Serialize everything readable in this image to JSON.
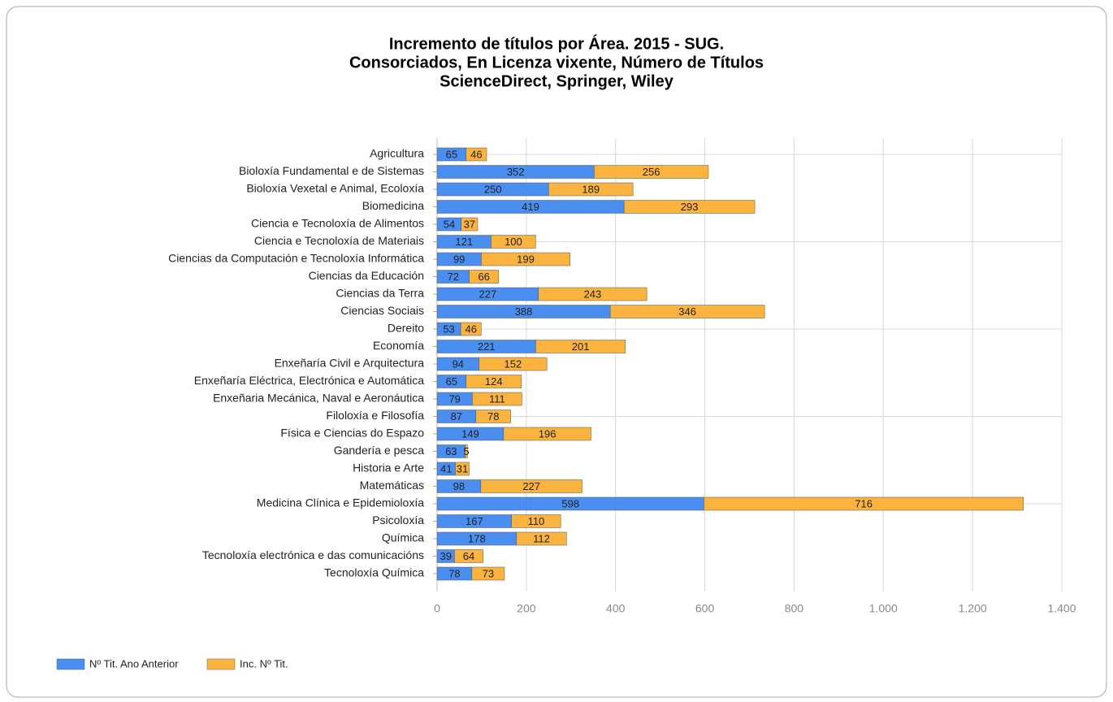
{
  "chart_data": {
    "type": "stacked_bar_horizontal",
    "title": [
      "Incremento de títulos por Área. 2015 - SUG.",
      "Consorciados, En Licenza vixente, Número de Títulos",
      "ScienceDirect, Springer, Wiley"
    ],
    "categories": [
      "Agricultura",
      "Bioloxía Fundamental e de Sistemas",
      "Bioloxía Vexetal e Animal, Ecoloxía",
      "Biomedicina",
      "Ciencia e Tecnoloxía de Alimentos",
      "Ciencia e Tecnoloxía de Materiais",
      "Ciencias da Computación e Tecnoloxía Informática",
      "Ciencias da Educación",
      "Ciencias da Terra",
      "Ciencias Sociais",
      "Dereito",
      "Economía",
      "Enxeñaría Civil e Arquitectura",
      "Enxeñaría Eléctrica, Electrónica e Automática",
      "Enxeñaria Mecánica, Naval e Aeronáutica",
      "Filoloxía e Filosofía",
      "Física e Ciencias do Espazo",
      "Gandería e pesca",
      "Historia e Arte",
      "Matemáticas",
      "Medicina Clínica e Epidemioloxía",
      "Psicoloxía",
      "Química",
      "Tecnoloxía electrónica e das comunicacións",
      "Tecnoloxía Química"
    ],
    "series": [
      {
        "name": "Nº Tit. Ano Anterior",
        "color": "#4a8ff0",
        "values": [
          65,
          352,
          250,
          419,
          54,
          121,
          99,
          72,
          227,
          388,
          53,
          221,
          94,
          65,
          79,
          87,
          149,
          63,
          41,
          98,
          598,
          167,
          178,
          39,
          78
        ]
      },
      {
        "name": "Inc. Nº Tit.",
        "color": "#fbb340",
        "values": [
          46,
          256,
          189,
          293,
          37,
          100,
          199,
          66,
          243,
          346,
          46,
          201,
          152,
          124,
          111,
          78,
          196,
          5,
          31,
          227,
          716,
          110,
          112,
          64,
          73
        ]
      }
    ],
    "xlim": [
      0,
      1400
    ],
    "xticks": [
      0,
      200,
      400,
      600,
      800,
      {
        "value": 1000,
        "label": "1.000"
      },
      {
        "value": 1200,
        "label": "1.200"
      },
      {
        "value": 1400,
        "label": "1.400"
      }
    ],
    "grid": true,
    "legend": "bottom-left"
  }
}
